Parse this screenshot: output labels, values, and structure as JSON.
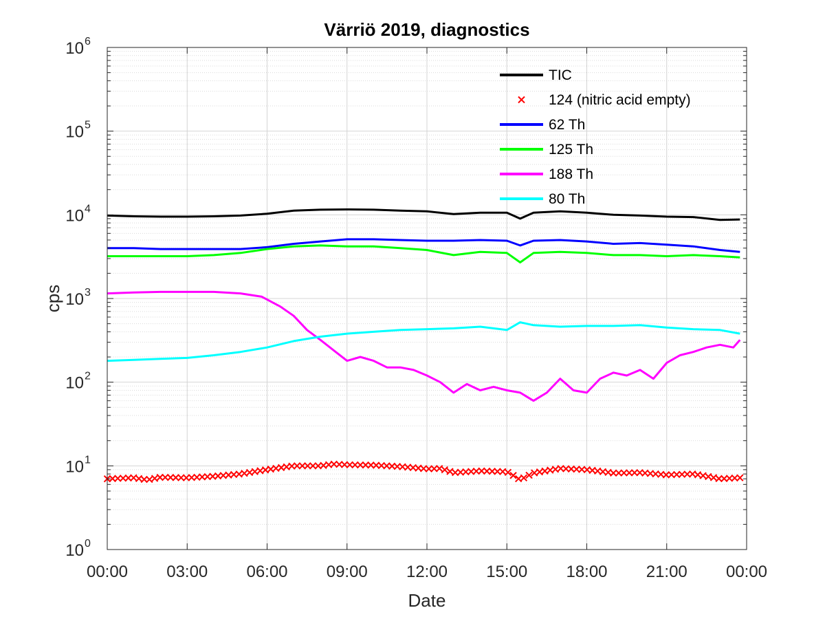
{
  "chart_data": {
    "type": "line",
    "title": "Värriö 2019, diagnostics",
    "xlabel": "Date",
    "ylabel": "cps",
    "yscale": "log",
    "ylim": [
      1,
      1000000
    ],
    "xlim": [
      0,
      24
    ],
    "grid": true,
    "legend_position": "top-right",
    "x_ticks": [
      {
        "x": 0,
        "label": "00:00"
      },
      {
        "x": 3,
        "label": "03:00"
      },
      {
        "x": 6,
        "label": "06:00"
      },
      {
        "x": 9,
        "label": "09:00"
      },
      {
        "x": 12,
        "label": "12:00"
      },
      {
        "x": 15,
        "label": "15:00"
      },
      {
        "x": 18,
        "label": "18:00"
      },
      {
        "x": 21,
        "label": "21:00"
      },
      {
        "x": 24,
        "label": "00:00"
      }
    ],
    "y_ticks": [
      {
        "y": 1,
        "base": "10",
        "exp": "0"
      },
      {
        "y": 10,
        "base": "10",
        "exp": "1"
      },
      {
        "y": 100,
        "base": "10",
        "exp": "2"
      },
      {
        "y": 1000,
        "base": "10",
        "exp": "3"
      },
      {
        "y": 10000,
        "base": "10",
        "exp": "4"
      },
      {
        "y": 100000,
        "base": "10",
        "exp": "5"
      },
      {
        "y": 1000000,
        "base": "10",
        "exp": "6"
      }
    ],
    "series": [
      {
        "name": "TIC",
        "color": "#000000",
        "style": "line",
        "x": [
          0,
          1,
          2,
          3,
          4,
          5,
          6,
          7,
          8,
          9,
          10,
          11,
          12,
          13,
          14,
          15,
          15.5,
          16,
          17,
          18,
          19,
          20,
          21,
          22,
          23,
          23.75
        ],
        "y": [
          9800,
          9600,
          9500,
          9500,
          9600,
          9800,
          10300,
          11200,
          11500,
          11600,
          11500,
          11200,
          11000,
          10200,
          10600,
          10600,
          9000,
          10600,
          11000,
          10600,
          10000,
          9800,
          9500,
          9400,
          8700,
          8800
        ]
      },
      {
        "name": "124 (nitric acid empty)",
        "color": "#ff0000",
        "style": "marker-x",
        "x": [
          0,
          1,
          1.5,
          2,
          3,
          4,
          5,
          6,
          7,
          8,
          8.5,
          9,
          10,
          11,
          12,
          12.5,
          13,
          14,
          15,
          15.5,
          16,
          17,
          18,
          19,
          20,
          21,
          22,
          23,
          23.75
        ],
        "y": [
          7,
          7.2,
          6.8,
          7.3,
          7.2,
          7.5,
          8,
          9,
          10,
          10,
          10.5,
          10.3,
          10.2,
          9.8,
          9.2,
          9.3,
          8.3,
          8.7,
          8.5,
          6.8,
          8.2,
          9.3,
          9,
          8.2,
          8.3,
          7.8,
          8,
          7,
          7.2
        ]
      },
      {
        "name": "62 Th",
        "color": "#0000ff",
        "style": "line",
        "x": [
          0,
          1,
          2,
          3,
          4,
          5,
          6,
          7,
          8,
          9,
          10,
          11,
          12,
          13,
          14,
          15,
          15.5,
          16,
          17,
          18,
          19,
          20,
          21,
          22,
          23,
          23.75
        ],
        "y": [
          4000,
          4000,
          3900,
          3900,
          3900,
          3900,
          4100,
          4500,
          4800,
          5100,
          5100,
          5000,
          4900,
          4900,
          5000,
          4900,
          4300,
          4900,
          5000,
          4800,
          4500,
          4600,
          4400,
          4200,
          3800,
          3600
        ]
      },
      {
        "name": "125 Th",
        "color": "#00ff00",
        "style": "line",
        "x": [
          0,
          1,
          2,
          3,
          4,
          5,
          6,
          7,
          8,
          9,
          10,
          11,
          12,
          13,
          14,
          15,
          15.5,
          16,
          17,
          18,
          19,
          20,
          21,
          22,
          23,
          23.75
        ],
        "y": [
          3200,
          3200,
          3200,
          3200,
          3300,
          3500,
          3900,
          4200,
          4300,
          4200,
          4200,
          4000,
          3800,
          3300,
          3600,
          3500,
          2700,
          3500,
          3600,
          3500,
          3300,
          3300,
          3200,
          3300,
          3200,
          3100
        ]
      },
      {
        "name": "188 Th",
        "color": "#ff00ff",
        "style": "line",
        "x": [
          0,
          1,
          2,
          3,
          4,
          5,
          5.8,
          6.5,
          7,
          7.5,
          8,
          8.5,
          9,
          9.5,
          10,
          10.5,
          11,
          11.5,
          12,
          12.5,
          13,
          13.5,
          14,
          14.5,
          15,
          15.5,
          16,
          16.5,
          17,
          17.5,
          18,
          18.5,
          19,
          19.5,
          20,
          20.5,
          21,
          21.5,
          22,
          22.5,
          23,
          23.5,
          23.75
        ],
        "y": [
          1150,
          1180,
          1200,
          1200,
          1200,
          1150,
          1050,
          800,
          620,
          420,
          320,
          240,
          180,
          200,
          180,
          150,
          150,
          140,
          120,
          100,
          75,
          95,
          80,
          88,
          80,
          75,
          60,
          75,
          110,
          80,
          75,
          110,
          130,
          120,
          140,
          110,
          170,
          210,
          230,
          260,
          280,
          260,
          320
        ]
      },
      {
        "name": "80 Th",
        "color": "#00ffff",
        "style": "line",
        "x": [
          0,
          1,
          2,
          3,
          4,
          5,
          6,
          7,
          8,
          9,
          10,
          11,
          12,
          13,
          14,
          15,
          15.5,
          16,
          17,
          18,
          19,
          20,
          21,
          22,
          23,
          23.75
        ],
        "y": [
          180,
          185,
          190,
          195,
          210,
          230,
          260,
          310,
          350,
          380,
          400,
          420,
          430,
          440,
          460,
          420,
          520,
          480,
          460,
          470,
          470,
          480,
          450,
          430,
          420,
          380
        ]
      }
    ]
  }
}
